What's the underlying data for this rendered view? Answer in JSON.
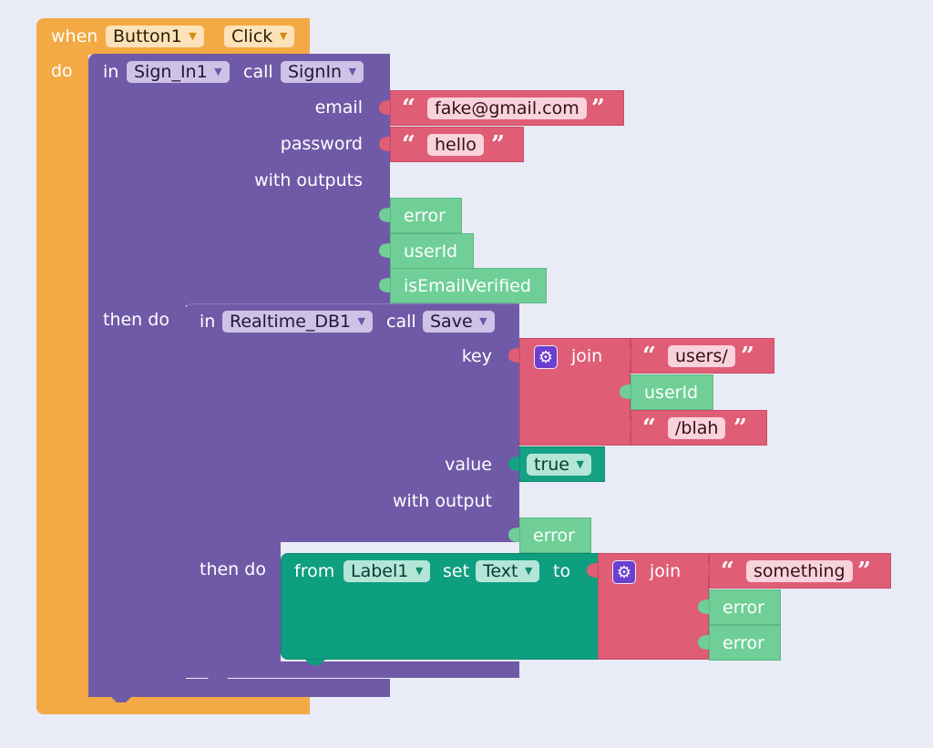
{
  "event": {
    "when_label": "when",
    "component": "Button1",
    "event_name": "Click",
    "do_label": "do"
  },
  "signin_call": {
    "in_label": "in",
    "component": "Sign_In1",
    "call_label": "call",
    "method": "SignIn",
    "params": {
      "email": "email",
      "password": "password"
    },
    "with_outputs_label": "with outputs",
    "outputs": [
      "error",
      "userId",
      "isEmailVerified"
    ],
    "then_do_label": "then do"
  },
  "email_value": "fake@gmail.com",
  "password_value": "hello",
  "save_call": {
    "in_label": "in",
    "component": "Realtime_DB1",
    "call_label": "call",
    "method": "Save",
    "params": {
      "key": "key",
      "value": "value"
    },
    "with_output_label": "with output",
    "output": "error",
    "then_do_label": "then do"
  },
  "key_join": {
    "label": "join",
    "parts": [
      "users/",
      "userId",
      "/blah"
    ]
  },
  "value_bool": "true",
  "set_block": {
    "from_label": "from",
    "component": "Label1",
    "set_label": "set",
    "property": "Text",
    "to_label": "to"
  },
  "text_join": {
    "label": "join",
    "parts": [
      "something",
      "error",
      "error"
    ]
  },
  "colors": {
    "event": "#f3a944",
    "procedure": "#705aa7",
    "text": "#e05d76",
    "variable": "#6fcf97",
    "logic_teal": "#16a085",
    "set_teal": "#0e9e80",
    "mutator": "#6b3fd0",
    "background": "#e9ebf7"
  }
}
